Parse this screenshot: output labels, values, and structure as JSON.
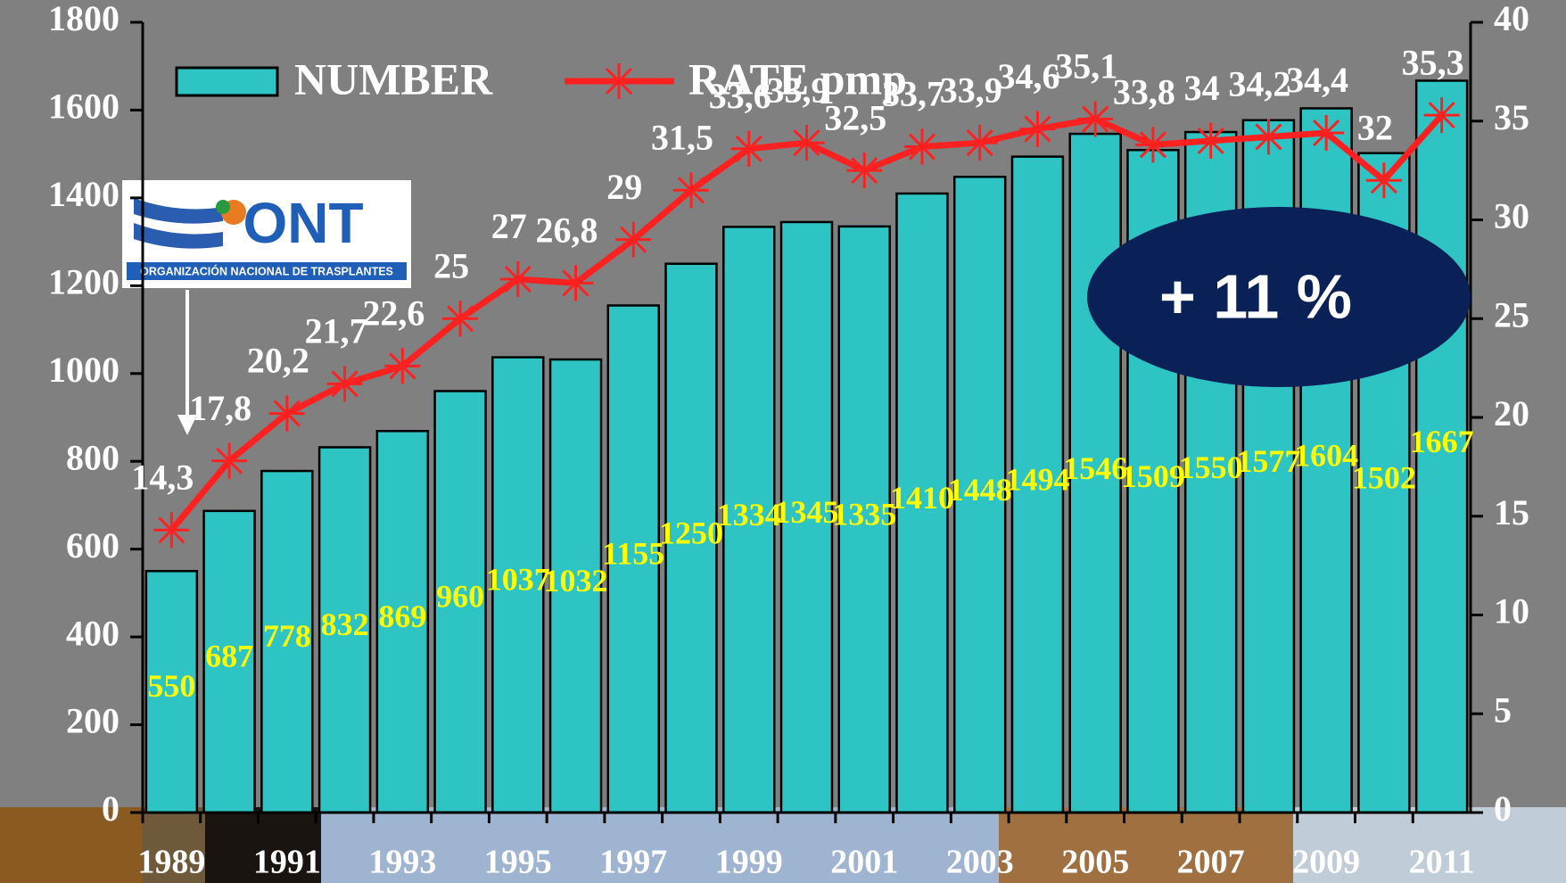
{
  "chart_data": {
    "type": "bar",
    "categories": [
      "1989",
      null,
      "1991",
      null,
      "1993",
      null,
      "1995",
      null,
      "1997",
      null,
      "1999",
      null,
      "2001",
      null,
      "2003",
      null,
      "2005",
      null,
      "2007",
      null,
      "2009",
      null,
      "2011"
    ],
    "series": [
      {
        "name": "NUMBER",
        "type": "bar",
        "color": "#2ec4c4",
        "values": [
          550,
          687,
          778,
          832,
          869,
          960,
          1037,
          1032,
          1155,
          1250,
          1334,
          1345,
          1335,
          1410,
          1448,
          1494,
          1546,
          1509,
          1550,
          1577,
          1604,
          1502,
          1667
        ]
      },
      {
        "name": "RATE pmp",
        "type": "line",
        "axis": "y2",
        "color": "#ff2020",
        "values": [
          14.3,
          17.8,
          20.2,
          21.7,
          22.6,
          25,
          27,
          26.8,
          29,
          31.5,
          33.6,
          33.9,
          32.5,
          33.7,
          33.9,
          34.6,
          35.1,
          33.8,
          34,
          34.2,
          34.4,
          32,
          35.3
        ],
        "value_labels": [
          "14,3",
          "17,8",
          "20,2",
          "21,7",
          "22,6",
          "25",
          "27",
          "26,8",
          "29",
          "31,5",
          "33,6",
          "33,9",
          "32,5",
          "33,7",
          "33,9",
          "34,6",
          "35,1",
          "33,8",
          "34",
          "34,2",
          "34,4",
          "32",
          "35,3"
        ]
      }
    ],
    "ylim": [
      0,
      1800
    ],
    "yticks": [
      0,
      200,
      400,
      600,
      800,
      1000,
      1200,
      1400,
      1600,
      1800
    ],
    "y2lim": [
      0,
      40
    ],
    "y2ticks": [
      0,
      5,
      10,
      15,
      20,
      25,
      30,
      35,
      40
    ],
    "grid": false,
    "legend": "top-left",
    "annotations": [
      "+ 11 %"
    ],
    "logo": {
      "title": "ONT",
      "subtitle": "ORGANIZACIÓN NACIONAL DE TRASPLANTES"
    }
  }
}
